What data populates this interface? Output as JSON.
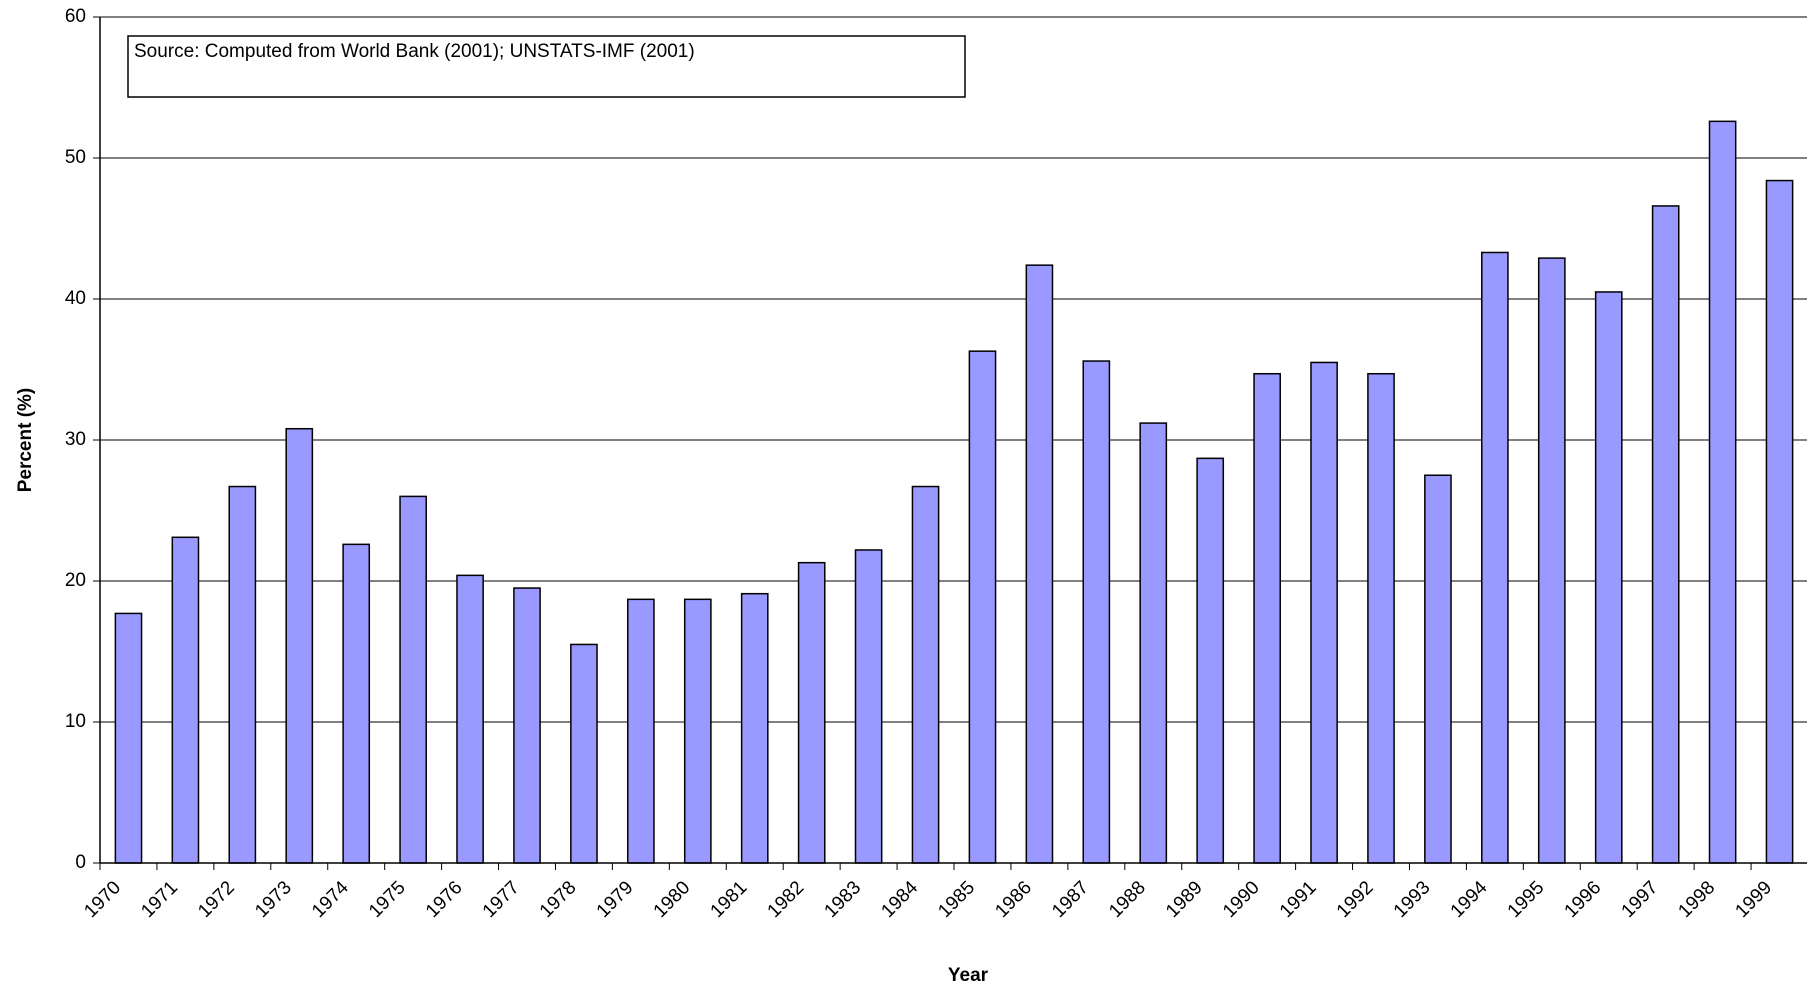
{
  "chart_data": {
    "type": "bar",
    "annotation": "Source: Computed from World Bank (2001); UNSTATS-IMF (2001)",
    "x_label": "Year",
    "y_label": "Percent (%)",
    "categories": [
      "1970",
      "1971",
      "1972",
      "1973",
      "1974",
      "1975",
      "1976",
      "1977",
      "1978",
      "1979",
      "1980",
      "1981",
      "1982",
      "1983",
      "1984",
      "1985",
      "1986",
      "1987",
      "1988",
      "1989",
      "1990",
      "1991",
      "1992",
      "1993",
      "1994",
      "1995",
      "1996",
      "1997",
      "1998",
      "1999"
    ],
    "values": [
      17.7,
      23.1,
      26.7,
      30.8,
      22.6,
      26.0,
      20.4,
      19.5,
      15.5,
      18.7,
      18.7,
      19.1,
      21.3,
      22.2,
      26.7,
      36.3,
      42.4,
      35.6,
      31.2,
      28.7,
      34.7,
      35.5,
      34.7,
      27.5,
      43.3,
      42.9,
      40.5,
      46.6,
      52.6,
      48.4
    ],
    "color": "#9999ff",
    "ylim": [
      0,
      60
    ],
    "yticks": [
      0,
      10,
      20,
      30,
      40,
      50,
      60
    ],
    "grid": true
  }
}
